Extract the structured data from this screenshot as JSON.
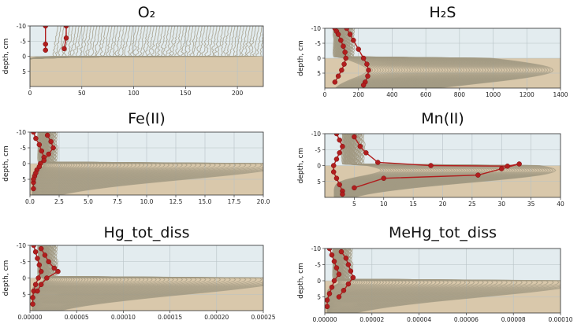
{
  "figure": {
    "colors": {
      "water": "#e3ecef",
      "sediment": "#d9c8ab",
      "model": "#a29a83",
      "obs": "#b11e1e"
    }
  },
  "chart_data": [
    {
      "type": "line",
      "title": "O₂",
      "ylabel": "depth, cm",
      "xlim": [
        0,
        225
      ],
      "ylim": [
        -10,
        10
      ],
      "yticks": [
        -10,
        -5,
        0,
        5
      ],
      "xticks": [
        0,
        50,
        100,
        150,
        200
      ],
      "xtick_labels": [
        "0",
        "50",
        "100",
        "150",
        "200"
      ],
      "model_regime": "o2",
      "observations": [
        {
          "name": "obs-1",
          "x": [
            15,
            15,
            15
          ],
          "depth": [
            -10,
            -4,
            -2
          ]
        },
        {
          "name": "obs-2",
          "x": [
            35,
            35,
            33
          ],
          "depth": [
            -10,
            -6,
            -2.5
          ]
        }
      ]
    },
    {
      "type": "line",
      "title": "H₂S",
      "ylabel": "depth, cm",
      "xlim": [
        0,
        1400
      ],
      "ylim": [
        -10,
        10
      ],
      "yticks": [
        -10,
        -5,
        0,
        5
      ],
      "xticks": [
        0,
        200,
        400,
        600,
        800,
        1000,
        1200,
        1400
      ],
      "xtick_labels": [
        "0",
        "200",
        "400",
        "600",
        "800",
        "1000",
        "1200",
        "1400"
      ],
      "model_regime": "h2s",
      "observations": [
        {
          "name": "obs-1",
          "x": [
            60,
            70,
            80,
            95,
            110,
            120,
            125,
            115,
            100,
            80,
            60
          ],
          "depth": [
            -10,
            -9,
            -8,
            -6,
            -4,
            -2,
            0,
            2,
            4,
            6,
            8
          ]
        },
        {
          "name": "obs-2",
          "x": [
            130,
            150,
            170,
            200,
            230,
            250,
            260,
            255,
            240,
            230
          ],
          "depth": [
            -10,
            -8,
            -6,
            -3,
            0,
            2,
            4,
            6,
            8,
            9
          ]
        }
      ]
    },
    {
      "type": "line",
      "title": "Fe(II)",
      "ylabel": "depth, cm",
      "xlim": [
        0,
        20
      ],
      "ylim": [
        -10,
        10
      ],
      "yticks": [
        -10,
        -5,
        0,
        5
      ],
      "xticks": [
        0,
        2.5,
        5,
        7.5,
        10,
        12.5,
        15,
        17.5,
        20
      ],
      "xtick_labels": [
        "0.0",
        "2.5",
        "5.0",
        "7.5",
        "10.0",
        "12.5",
        "15.0",
        "17.5",
        "20.0"
      ],
      "model_regime": "tail",
      "observations": [
        {
          "name": "obs-1",
          "x": [
            0.3,
            0.5,
            0.8,
            1.0,
            1.2,
            0.9,
            0.6,
            0.4,
            0.3,
            0.3
          ],
          "depth": [
            -10,
            -8,
            -6,
            -4,
            -2,
            0,
            2,
            4,
            6,
            8
          ]
        },
        {
          "name": "obs-2",
          "x": [
            1.5,
            1.8,
            2.0,
            1.6,
            1.2,
            0.8,
            0.5,
            0.3
          ],
          "depth": [
            -9,
            -7,
            -5,
            -3,
            -1,
            1,
            3,
            5
          ]
        }
      ]
    },
    {
      "type": "line",
      "title": "Mn(II)",
      "ylabel": "depth, cm",
      "xlim": [
        0,
        40
      ],
      "ylim": [
        -10,
        10
      ],
      "yticks": [
        -10,
        -5,
        0,
        5
      ],
      "xticks": [
        5,
        10,
        15,
        20,
        25,
        30,
        35,
        40
      ],
      "xtick_labels": [
        "5",
        "10",
        "15",
        "20",
        "25",
        "30",
        "35",
        "40"
      ],
      "model_regime": "mn",
      "observations": [
        {
          "name": "obs-1",
          "x": [
            2,
            2.5,
            3,
            2.5,
            2,
            1.5,
            1.5,
            2,
            2.5,
            3,
            3
          ],
          "depth": [
            -10,
            -8,
            -6,
            -4,
            -2,
            0,
            2,
            4,
            6,
            8,
            9
          ]
        },
        {
          "name": "obs-2",
          "x": [
            5,
            6,
            7,
            9,
            18,
            31,
            33,
            30,
            26,
            10,
            5
          ],
          "depth": [
            -9,
            -6,
            -4,
            -1,
            0,
            0.2,
            -0.5,
            1,
            3,
            4,
            7
          ]
        }
      ]
    },
    {
      "type": "line",
      "title": "Hg_tot_diss",
      "ylabel": "depth, cm",
      "xlim": [
        0,
        0.00025
      ],
      "ylim": [
        -10,
        10
      ],
      "yticks": [
        -10,
        -5,
        0,
        5
      ],
      "xticks": [
        0,
        5e-05,
        0.0001,
        0.00015,
        0.0002,
        0.00025
      ],
      "xtick_labels": [
        "0.00000",
        "0.00005",
        "0.00010",
        "0.00015",
        "0.00020",
        "0.00025"
      ],
      "model_regime": "tail",
      "observations": [
        {
          "name": "obs-1",
          "x": [
            4e-06,
            6e-06,
            8e-06,
            1e-05,
            1.2e-05,
            9e-06,
            6e-06,
            4e-06,
            3e-06,
            3e-06
          ],
          "depth": [
            -10,
            -8,
            -6,
            -4,
            -2,
            0,
            2,
            4,
            6,
            8
          ]
        },
        {
          "name": "obs-2",
          "x": [
            1.2e-05,
            1.6e-05,
            2e-05,
            2.6e-05,
            3e-05,
            1.8e-05,
            1.2e-05,
            8e-06
          ],
          "depth": [
            -9,
            -7,
            -5,
            -3,
            -2,
            0,
            2,
            4
          ]
        }
      ]
    },
    {
      "type": "line",
      "title": "MeHg_tot_diss",
      "ylabel": "depth, cm",
      "xlim": [
        0,
        0.0001
      ],
      "ylim": [
        -10,
        10
      ],
      "yticks": [
        -10,
        -5,
        0,
        5
      ],
      "xticks": [
        0,
        2e-05,
        4e-05,
        6e-05,
        8e-05,
        0.0001
      ],
      "xtick_labels": [
        "0.00000",
        "0.00002",
        "0.00004",
        "0.00006",
        "0.00008",
        "0.00010"
      ],
      "model_regime": "tail",
      "observations": [
        {
          "name": "obs-1",
          "x": [
            2e-06,
            3e-06,
            4e-06,
            5e-06,
            6e-06,
            4e-06,
            3e-06,
            2e-06,
            1e-06,
            1e-06
          ],
          "depth": [
            -10,
            -8,
            -6,
            -4,
            -2,
            0,
            2,
            4,
            6,
            8
          ]
        },
        {
          "name": "obs-2",
          "x": [
            7e-06,
            9e-06,
            1e-05,
            1.1e-05,
            1.2e-05,
            1e-05,
            8e-06,
            6e-06
          ],
          "depth": [
            -9,
            -7,
            -5,
            -3,
            -1,
            1,
            3,
            5
          ]
        }
      ]
    }
  ]
}
